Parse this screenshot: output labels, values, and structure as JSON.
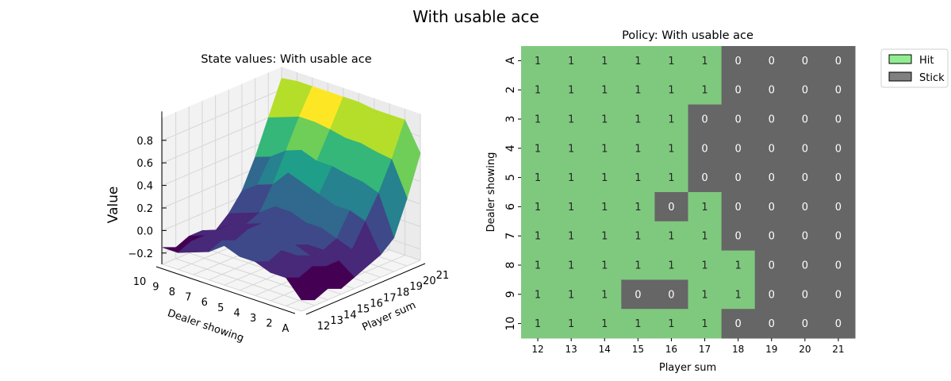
{
  "figure": {
    "suptitle": "With usable ace"
  },
  "chart_data": [
    {
      "type": "surface3d",
      "title": "State values: With usable ace",
      "xlabel": "Player sum",
      "ylabel": "Dealer showing",
      "zlabel": "Value",
      "x_ticks": [
        "12",
        "13",
        "14",
        "15",
        "16",
        "17",
        "18",
        "19",
        "20",
        "21"
      ],
      "y_ticks": [
        "A",
        "2",
        "3",
        "4",
        "5",
        "6",
        "7",
        "8",
        "9",
        "10"
      ],
      "z_ticks": [
        "−0.2",
        "0.0",
        "0.2",
        "0.4",
        "0.6",
        "0.8"
      ],
      "zlim": [
        -0.3,
        1.0
      ],
      "colormap": "viridis",
      "grid": true,
      "values_by_dealer": [
        [
          -0.2,
          -0.25,
          -0.2,
          -0.25,
          -0.2,
          -0.15,
          -0.1,
          0.0,
          0.3,
          0.65
        ],
        [
          -0.05,
          -0.1,
          -0.05,
          -0.1,
          -0.1,
          -0.05,
          0.15,
          0.35,
          0.6,
          0.9
        ],
        [
          -0.05,
          -0.05,
          0.0,
          -0.05,
          -0.05,
          0.0,
          0.2,
          0.4,
          0.62,
          0.9
        ],
        [
          0.0,
          -0.05,
          0.0,
          0.0,
          -0.05,
          0.05,
          0.2,
          0.42,
          0.65,
          0.9
        ],
        [
          0.0,
          0.0,
          0.05,
          0.0,
          0.0,
          0.05,
          0.25,
          0.45,
          0.65,
          0.92
        ],
        [
          0.05,
          0.0,
          0.05,
          0.0,
          0.05,
          0.1,
          0.3,
          0.45,
          0.68,
          0.92
        ],
        [
          -0.05,
          0.0,
          -0.05,
          0.0,
          0.0,
          0.1,
          0.35,
          0.5,
          0.7,
          0.92
        ],
        [
          -0.1,
          -0.05,
          -0.1,
          -0.05,
          -0.05,
          0.0,
          0.2,
          0.45,
          0.7,
          0.92
        ],
        [
          -0.15,
          -0.1,
          -0.1,
          -0.1,
          -0.1,
          -0.05,
          0.15,
          0.35,
          0.65,
          0.92
        ],
        [
          -0.15,
          -0.2,
          -0.15,
          -0.15,
          -0.2,
          -0.1,
          0.05,
          0.3,
          0.6,
          0.9
        ]
      ]
    },
    {
      "type": "heatmap",
      "title": "Policy: With usable ace",
      "xlabel": "Player sum",
      "ylabel": "Dealer showing",
      "x_ticks": [
        "12",
        "13",
        "14",
        "15",
        "16",
        "17",
        "18",
        "19",
        "20",
        "21"
      ],
      "y_ticks": [
        "A",
        "2",
        "3",
        "4",
        "5",
        "6",
        "7",
        "8",
        "9",
        "10"
      ],
      "values": [
        [
          1,
          1,
          1,
          1,
          1,
          1,
          0,
          0,
          0,
          0
        ],
        [
          1,
          1,
          1,
          1,
          1,
          1,
          0,
          0,
          0,
          0
        ],
        [
          1,
          1,
          1,
          1,
          1,
          0,
          0,
          0,
          0,
          0
        ],
        [
          1,
          1,
          1,
          1,
          1,
          0,
          0,
          0,
          0,
          0
        ],
        [
          1,
          1,
          1,
          1,
          1,
          0,
          0,
          0,
          0,
          0
        ],
        [
          1,
          1,
          1,
          1,
          0,
          1,
          0,
          0,
          0,
          0
        ],
        [
          1,
          1,
          1,
          1,
          1,
          1,
          0,
          0,
          0,
          0
        ],
        [
          1,
          1,
          1,
          1,
          1,
          1,
          1,
          0,
          0,
          0
        ],
        [
          1,
          1,
          1,
          0,
          0,
          1,
          1,
          0,
          0,
          0
        ],
        [
          1,
          1,
          1,
          1,
          1,
          1,
          0,
          0,
          0,
          0
        ]
      ],
      "colors": {
        "1": "#7fc97f",
        "0": "#666666"
      },
      "legend": {
        "placement": "outside-top-right",
        "items": [
          {
            "label": "Hit",
            "color": "#90ee90"
          },
          {
            "label": "Stick",
            "color": "#808080"
          }
        ]
      }
    }
  ]
}
